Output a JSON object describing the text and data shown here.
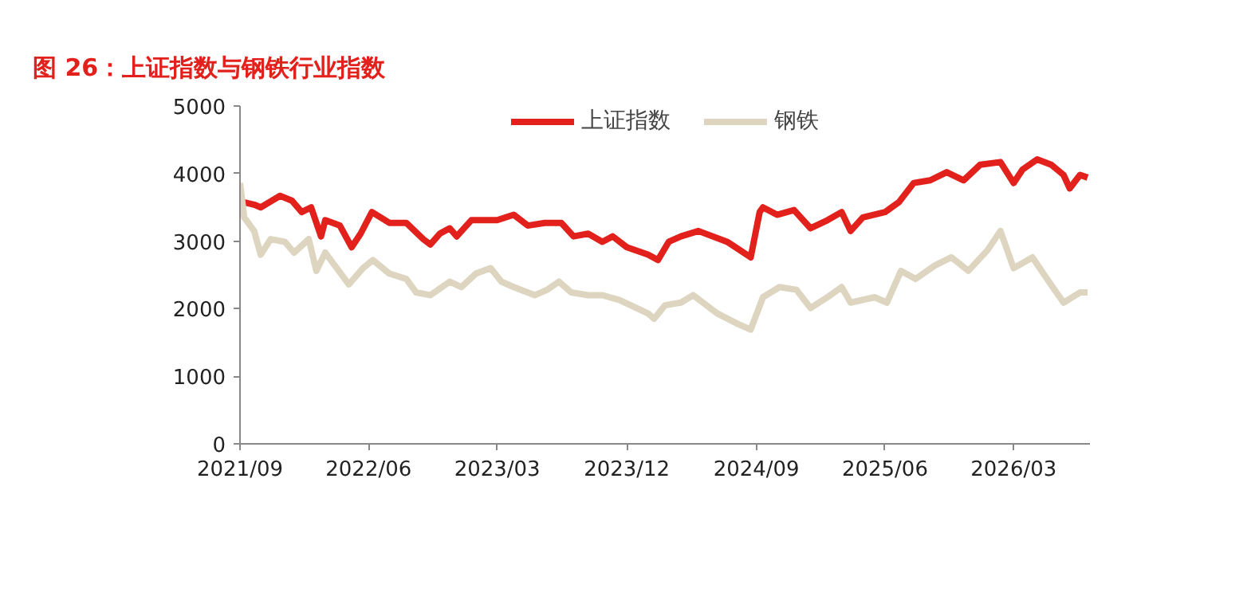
{
  "chart_data": {
    "type": "line",
    "title": "图 26：上证指数与钢铁行业指数",
    "xlim": [
      "2021-09-01",
      "2026-08-10"
    ],
    "xticks": [
      {
        "value": "2021-09-01",
        "label": "2021/09"
      },
      {
        "value": "2022-06-01",
        "label": "2022/06"
      },
      {
        "value": "2023-03-01",
        "label": "2023/03"
      },
      {
        "value": "2023-12-01",
        "label": "2023/12"
      },
      {
        "value": "2024-09-01",
        "label": "2024/09"
      },
      {
        "value": "2025-06-01",
        "label": "2025/06"
      },
      {
        "value": "2026-03-01",
        "label": "2026/03"
      }
    ],
    "ylim": [
      0,
      5000
    ],
    "yticks": [
      0,
      1000,
      2000,
      3000,
      4000,
      5000
    ],
    "grid": false,
    "legend": "top",
    "line_style": "solid",
    "marker": "none",
    "series": [
      {
        "name": "上证指数",
        "color": "#e2211c",
        "x": [
          "2021-09-06",
          "2021-10-01",
          "2021-10-15",
          "2021-11-25",
          "2021-12-20",
          "2022-01-10",
          "2022-01-30",
          "2022-02-20",
          "2022-03-01",
          "2022-04-01",
          "2022-04-26",
          "2022-05-15",
          "2022-06-08",
          "2022-07-15",
          "2022-08-20",
          "2022-09-25",
          "2022-10-10",
          "2022-10-30",
          "2022-11-20",
          "2022-12-05",
          "2023-01-05",
          "2023-03-01",
          "2023-04-05",
          "2023-05-05",
          "2023-06-10",
          "2023-07-15",
          "2023-08-10",
          "2023-09-10",
          "2023-10-10",
          "2023-11-01",
          "2023-12-01",
          "2024-01-15",
          "2024-02-05",
          "2024-02-28",
          "2024-03-25",
          "2024-05-01",
          "2024-07-01",
          "2024-08-20",
          "2024-09-08",
          "2024-09-15",
          "2024-10-15",
          "2024-11-20",
          "2024-12-25",
          "2025-01-30",
          "2025-03-01",
          "2025-03-20",
          "2025-04-15",
          "2025-06-01",
          "2025-07-01",
          "2025-08-01",
          "2025-09-05",
          "2025-10-10",
          "2025-11-15",
          "2025-12-20",
          "2026-02-01",
          "2026-03-01",
          "2026-03-20",
          "2026-04-20",
          "2026-05-20",
          "2026-06-15",
          "2026-06-28",
          "2026-07-20",
          "2026-08-05"
        ],
        "values": [
          3580,
          3540,
          3500,
          3670,
          3600,
          3430,
          3500,
          3070,
          3310,
          3230,
          2910,
          3110,
          3430,
          3270,
          3270,
          3030,
          2950,
          3110,
          3190,
          3070,
          3310,
          3310,
          3390,
          3230,
          3270,
          3270,
          3070,
          3110,
          2990,
          3070,
          2910,
          2800,
          2720,
          2990,
          3070,
          3150,
          2990,
          2760,
          3430,
          3500,
          3390,
          3460,
          3190,
          3310,
          3430,
          3150,
          3350,
          3430,
          3580,
          3860,
          3900,
          4020,
          3900,
          4130,
          4170,
          3860,
          4060,
          4210,
          4130,
          3980,
          3780,
          3980,
          3940
        ]
      },
      {
        "name": "钢铁",
        "color": "#ddd5bf",
        "x": [
          "2021-09-01",
          "2021-09-10",
          "2021-10-01",
          "2021-10-15",
          "2021-11-05",
          "2021-12-05",
          "2021-12-25",
          "2022-01-25",
          "2022-02-10",
          "2022-03-01",
          "2022-04-20",
          "2022-05-20",
          "2022-06-10",
          "2022-07-15",
          "2022-08-20",
          "2022-09-10",
          "2022-10-10",
          "2022-11-20",
          "2022-12-15",
          "2023-01-15",
          "2023-02-15",
          "2023-03-10",
          "2023-04-05",
          "2023-05-20",
          "2023-06-15",
          "2023-07-10",
          "2023-08-05",
          "2023-09-10",
          "2023-10-10",
          "2023-11-15",
          "2024-01-15",
          "2024-01-28",
          "2024-02-20",
          "2024-03-25",
          "2024-04-20",
          "2024-06-10",
          "2024-07-25",
          "2024-08-20",
          "2024-09-15",
          "2024-10-20",
          "2024-11-25",
          "2024-12-25",
          "2025-01-30",
          "2025-03-01",
          "2025-03-20",
          "2025-05-10",
          "2025-06-05",
          "2025-07-05",
          "2025-08-05",
          "2025-09-15",
          "2025-10-20",
          "2025-11-25",
          "2026-01-05",
          "2026-02-01",
          "2026-03-01",
          "2026-04-10",
          "2026-05-15",
          "2026-06-15",
          "2026-07-20",
          "2026-08-05"
        ],
        "values": [
          3860,
          3350,
          3150,
          2800,
          3030,
          2990,
          2830,
          3030,
          2560,
          2830,
          2360,
          2600,
          2720,
          2520,
          2440,
          2240,
          2200,
          2400,
          2320,
          2520,
          2600,
          2400,
          2320,
          2200,
          2280,
          2400,
          2240,
          2200,
          2200,
          2130,
          1930,
          1850,
          2050,
          2090,
          2200,
          1930,
          1770,
          1690,
          2170,
          2320,
          2280,
          2010,
          2170,
          2320,
          2090,
          2170,
          2090,
          2560,
          2440,
          2640,
          2760,
          2560,
          2870,
          3150,
          2600,
          2760,
          2400,
          2090,
          2240,
          2240
        ]
      }
    ]
  }
}
